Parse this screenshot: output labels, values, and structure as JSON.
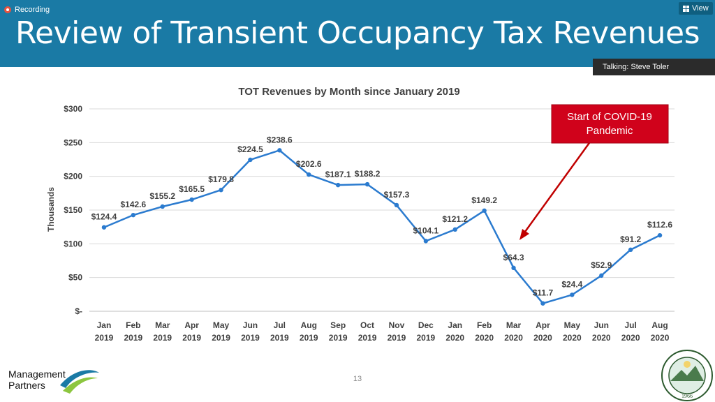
{
  "recording": {
    "label": "Recording"
  },
  "view_button": {
    "label": "View"
  },
  "slide": {
    "title": "Review of Transient Occupancy Tax Revenues",
    "page_number": "13"
  },
  "talking": {
    "text": "Talking: Steve Toler"
  },
  "logo": {
    "line1": "Management",
    "line2": "Partners"
  },
  "seal": {
    "text": "CITY OF SCOTTS VALLEY CALIFORNIA",
    "year": "1966"
  },
  "callout": {
    "line1": "Start of COVID-19",
    "line2": "Pandemic"
  },
  "colors": {
    "header": "#1a7aa5",
    "line": "#2b7bcf",
    "callout": "#d0021b",
    "arrow": "#c00000"
  },
  "chart_data": {
    "type": "line",
    "title": "TOT Revenues by Month since January 2019",
    "ylabel": "Thousands",
    "xlabel": "",
    "ylim": [
      0,
      300
    ],
    "yticks": [
      {
        "value": 0,
        "label": "$-"
      },
      {
        "value": 50,
        "label": "$50"
      },
      {
        "value": 100,
        "label": "$100"
      },
      {
        "value": 150,
        "label": "$150"
      },
      {
        "value": 200,
        "label": "$200"
      },
      {
        "value": 250,
        "label": "$250"
      },
      {
        "value": 300,
        "label": "$300"
      }
    ],
    "grid": true,
    "categories": [
      [
        "Jan",
        "2019"
      ],
      [
        "Feb",
        "2019"
      ],
      [
        "Mar",
        "2019"
      ],
      [
        "Apr",
        "2019"
      ],
      [
        "May",
        "2019"
      ],
      [
        "Jun",
        "2019"
      ],
      [
        "Jul",
        "2019"
      ],
      [
        "Aug",
        "2019"
      ],
      [
        "Sep",
        "2019"
      ],
      [
        "Oct",
        "2019"
      ],
      [
        "Nov",
        "2019"
      ],
      [
        "Dec",
        "2019"
      ],
      [
        "Jan",
        "2020"
      ],
      [
        "Feb",
        "2020"
      ],
      [
        "Mar",
        "2020"
      ],
      [
        "Apr",
        "2020"
      ],
      [
        "May",
        "2020"
      ],
      [
        "Jun",
        "2020"
      ],
      [
        "Jul",
        "2020"
      ],
      [
        "Aug",
        "2020"
      ]
    ],
    "values": [
      124.4,
      142.6,
      155.2,
      165.5,
      179.8,
      224.5,
      238.6,
      202.6,
      187.1,
      188.2,
      157.3,
      104.1,
      121.2,
      149.2,
      64.3,
      11.7,
      24.4,
      52.9,
      91.2,
      112.6
    ],
    "labels": [
      "$124.4",
      "$142.6",
      "$155.2",
      "$165.5",
      "$179.8",
      "$224.5",
      "$238.6",
      "$202.6",
      "$187.1",
      "$188.2",
      "$157.3",
      "$104.1",
      "$121.2",
      "$149.2",
      "$64.3",
      "$11.7",
      "$24.4",
      "$52.9",
      "$91.2",
      "$112.6"
    ]
  }
}
